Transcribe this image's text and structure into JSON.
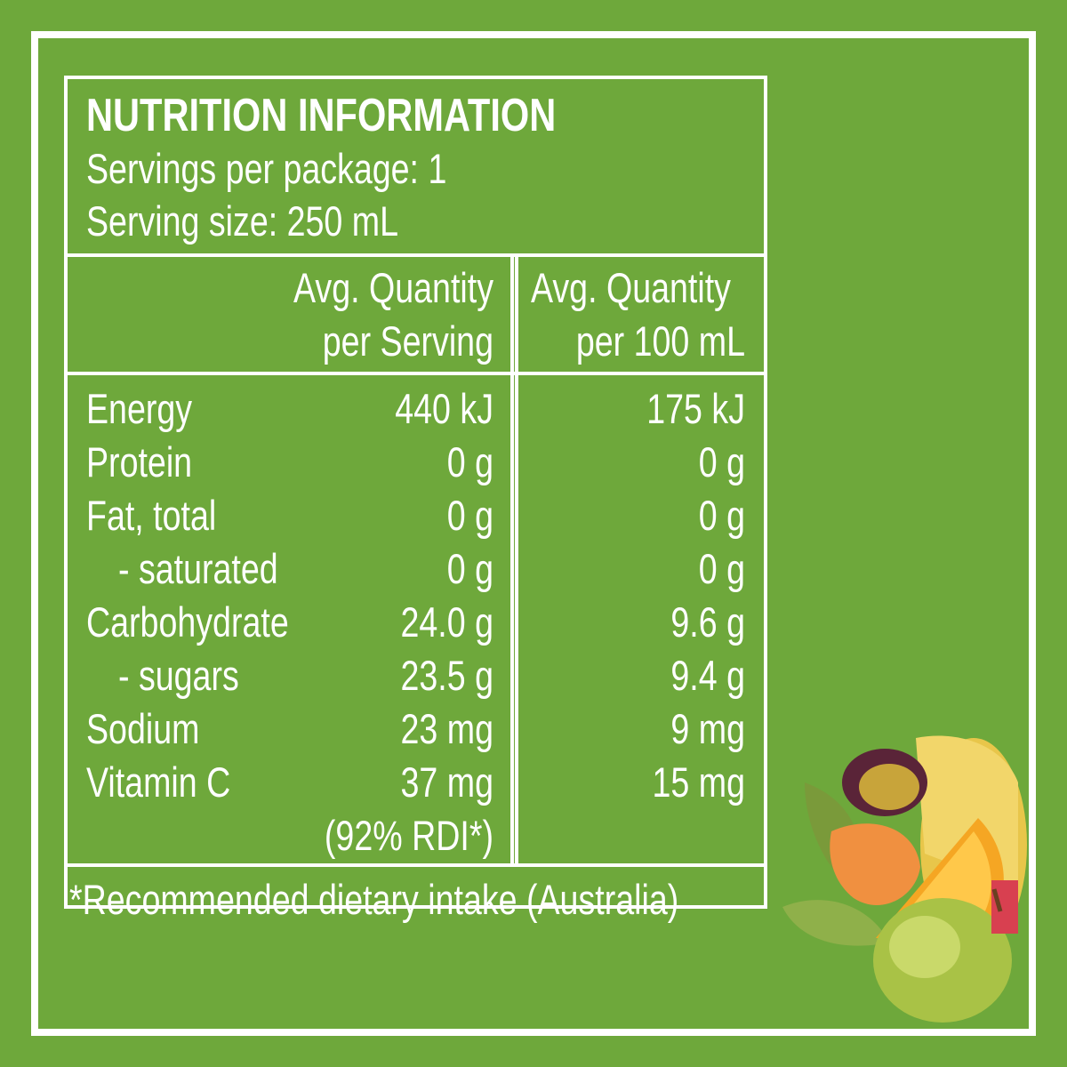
{
  "header": {
    "title": "NUTRITION INFORMATION",
    "servings": "Servings per package: 1",
    "serving_size": "Serving size: 250 mL"
  },
  "table": {
    "columns": [
      [
        "Avg. Quantity",
        "per Serving"
      ],
      [
        "Avg. Quantity",
        "per 100 mL"
      ]
    ],
    "rows": [
      {
        "name": "Energy",
        "per_serving": "440 kJ",
        "per_100ml": "175 kJ"
      },
      {
        "name": "Protein",
        "per_serving": "0 g",
        "per_100ml": "0 g"
      },
      {
        "name": "Fat, total",
        "per_serving": "0 g",
        "per_100ml": "0 g"
      },
      {
        "name": "- saturated",
        "per_serving": "0 g",
        "per_100ml": "0 g"
      },
      {
        "name": "Carbohydrate",
        "per_serving": "24.0 g",
        "per_100ml": "9.6 g"
      },
      {
        "name": "- sugars",
        "per_serving": "23.5 g",
        "per_100ml": "9.4 g"
      },
      {
        "name": "Sodium",
        "per_serving": "23 mg",
        "per_100ml": "9 mg"
      },
      {
        "name": "Vitamin C",
        "per_serving": "37 mg",
        "per_100ml": "15 mg",
        "note": "(92% RDI*)"
      }
    ]
  },
  "footnote": "*Recommended dietary intake (Australia)"
}
